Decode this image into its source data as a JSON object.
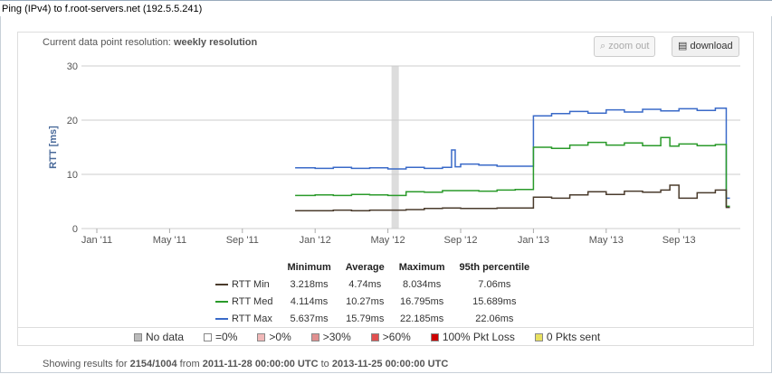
{
  "title": "Ping (IPv4) to f.root-servers.net (192.5.5.241)",
  "resolution_label": "Current data point resolution:",
  "resolution_value": "weekly resolution",
  "buttons": {
    "zoom_out": "zoom out",
    "download": "download"
  },
  "stats": {
    "headers": [
      "Minimum",
      "Average",
      "Maximum",
      "95th percentile"
    ],
    "rows": [
      {
        "name": "RTT Min",
        "color": "#4a3b2c",
        "values": [
          "3.218ms",
          "4.74ms",
          "8.034ms",
          "7.06ms"
        ]
      },
      {
        "name": "RTT Med",
        "color": "#2a9a2a",
        "values": [
          "4.114ms",
          "10.27ms",
          "16.795ms",
          "15.689ms"
        ]
      },
      {
        "name": "RTT Max",
        "color": "#3a6ac8",
        "values": [
          "5.637ms",
          "15.79ms",
          "22.185ms",
          "22.06ms"
        ]
      }
    ]
  },
  "legend": [
    {
      "label": "No data",
      "color": "#bbbbbb"
    },
    {
      "label": "=0%",
      "color": "#ffffff"
    },
    {
      "label": ">0%",
      "color": "#f0b8b8"
    },
    {
      "label": ">30%",
      "color": "#e09090"
    },
    {
      "label": ">60%",
      "color": "#e05050"
    },
    {
      "label": "100% Pkt Loss",
      "color": "#cc0000"
    },
    {
      "label": "0 Pkts sent",
      "color": "#e8e060"
    }
  ],
  "footer": {
    "prefix": "Showing results for",
    "id": "2154/1004",
    "from_label": "from",
    "from": "2011-11-28 00:00:00 UTC",
    "to_label": "to",
    "to": "2013-11-25 00:00:00 UTC"
  },
  "chart_data": {
    "type": "line",
    "ylabel": "RTT [ms]",
    "ylim": [
      0,
      30
    ],
    "yticks": [
      "0",
      "10",
      "20",
      "30"
    ],
    "xticks": [
      "Jan '11",
      "May '11",
      "Sep '11",
      "Jan '12",
      "May '12",
      "Sep '12",
      "Jan '13",
      "May '13",
      "Sep '13"
    ],
    "x_unit": "months since Jan 2011",
    "nodata_band": [
      16.2,
      16.6
    ],
    "series": [
      {
        "name": "RTT Max",
        "color": "#3a6ac8",
        "points": [
          [
            10.9,
            11.2
          ],
          [
            12,
            11.1
          ],
          [
            13,
            11.3
          ],
          [
            14,
            11.1
          ],
          [
            15,
            11.2
          ],
          [
            16,
            11
          ],
          [
            17,
            11.3
          ],
          [
            18,
            11.1
          ],
          [
            19,
            11.3
          ],
          [
            19.5,
            14.5
          ],
          [
            19.7,
            11.4
          ],
          [
            20,
            11.9
          ],
          [
            21,
            11.7
          ],
          [
            22,
            11.5
          ],
          [
            23,
            11.5
          ],
          [
            24,
            20.8
          ],
          [
            25,
            21.2
          ],
          [
            26,
            21.6
          ],
          [
            27,
            21.3
          ],
          [
            28,
            21.9
          ],
          [
            29,
            21.5
          ],
          [
            30,
            22
          ],
          [
            31,
            21.7
          ],
          [
            32,
            22.1
          ],
          [
            33,
            21.8
          ],
          [
            34,
            22.2
          ],
          [
            34.6,
            5.6
          ]
        ]
      },
      {
        "name": "RTT Med",
        "color": "#2a9a2a",
        "points": [
          [
            10.9,
            6.1
          ],
          [
            12,
            6.2
          ],
          [
            13,
            6.1
          ],
          [
            14,
            6.3
          ],
          [
            15,
            6.2
          ],
          [
            16,
            6.1
          ],
          [
            17,
            6.8
          ],
          [
            18,
            6.7
          ],
          [
            19,
            7
          ],
          [
            20,
            7
          ],
          [
            21,
            6.9
          ],
          [
            22,
            7.1
          ],
          [
            23,
            7.2
          ],
          [
            24,
            15
          ],
          [
            25,
            14.8
          ],
          [
            26,
            15.4
          ],
          [
            27,
            15.9
          ],
          [
            28,
            15.4
          ],
          [
            29,
            15.8
          ],
          [
            30,
            15.3
          ],
          [
            31,
            16.8
          ],
          [
            31.5,
            15.2
          ],
          [
            32,
            15.6
          ],
          [
            33,
            15.3
          ],
          [
            34,
            15.5
          ],
          [
            34.6,
            4.1
          ]
        ]
      },
      {
        "name": "RTT Min",
        "color": "#4a3b2c",
        "points": [
          [
            10.9,
            3.3
          ],
          [
            12,
            3.3
          ],
          [
            13,
            3.4
          ],
          [
            14,
            3.3
          ],
          [
            15,
            3.4
          ],
          [
            16,
            3.4
          ],
          [
            17,
            3.5
          ],
          [
            18,
            3.7
          ],
          [
            19,
            3.8
          ],
          [
            20,
            3.7
          ],
          [
            21,
            3.7
          ],
          [
            22,
            3.8
          ],
          [
            23,
            3.8
          ],
          [
            24,
            5.8
          ],
          [
            25,
            5.6
          ],
          [
            26,
            6.2
          ],
          [
            27,
            6.8
          ],
          [
            28,
            6.3
          ],
          [
            29,
            6.9
          ],
          [
            30,
            6.7
          ],
          [
            31,
            7.1
          ],
          [
            31.5,
            8.0
          ],
          [
            32,
            5.6
          ],
          [
            33,
            6.6
          ],
          [
            34,
            7.1
          ],
          [
            34.6,
            3.9
          ]
        ]
      }
    ]
  }
}
